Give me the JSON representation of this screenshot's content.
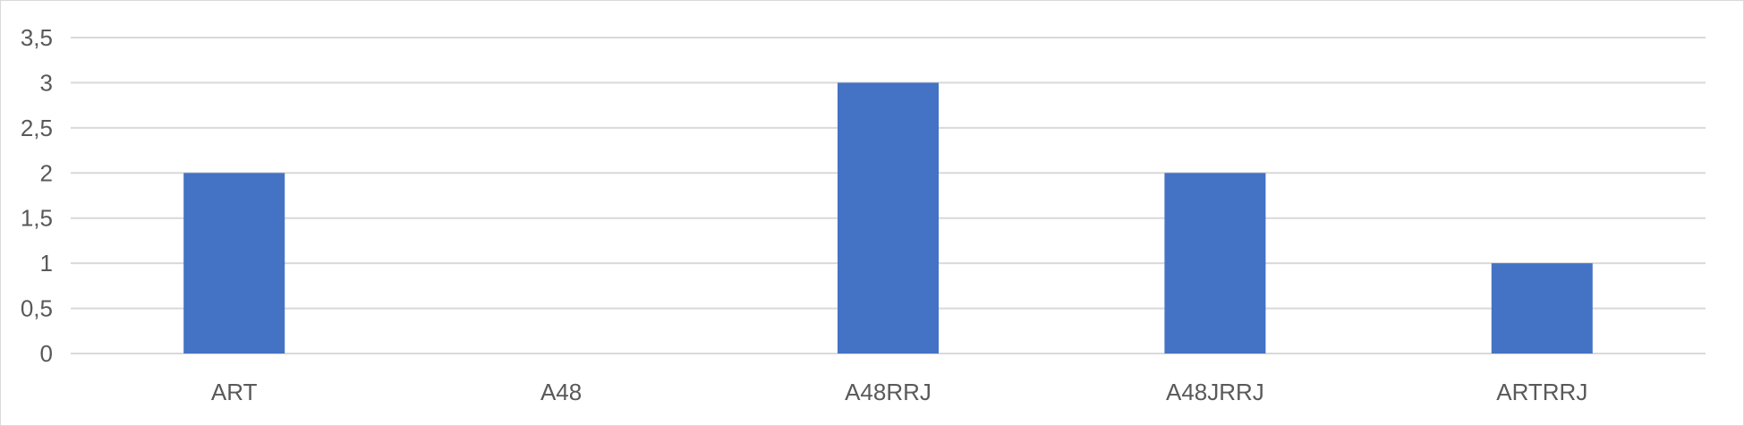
{
  "chart_data": {
    "type": "bar",
    "title": "",
    "xlabel": "",
    "ylabel": "",
    "categories": [
      "ART",
      "A48",
      "A48RRJ",
      "A48JRRJ",
      "ARTRRJ"
    ],
    "values": [
      2,
      0,
      3,
      2,
      1
    ],
    "ylim": [
      0,
      3.5
    ],
    "y_ticks": [
      0,
      0.5,
      1,
      1.5,
      2,
      2.5,
      3,
      3.5
    ],
    "y_tick_labels": [
      "0",
      "0,5",
      "1",
      "1,5",
      "2",
      "2,5",
      "3",
      "3,5"
    ],
    "grid": true,
    "legend": "none",
    "colors": {
      "bar": "#4472C4",
      "grid": "#d9d9d9",
      "text": "#595959"
    }
  }
}
